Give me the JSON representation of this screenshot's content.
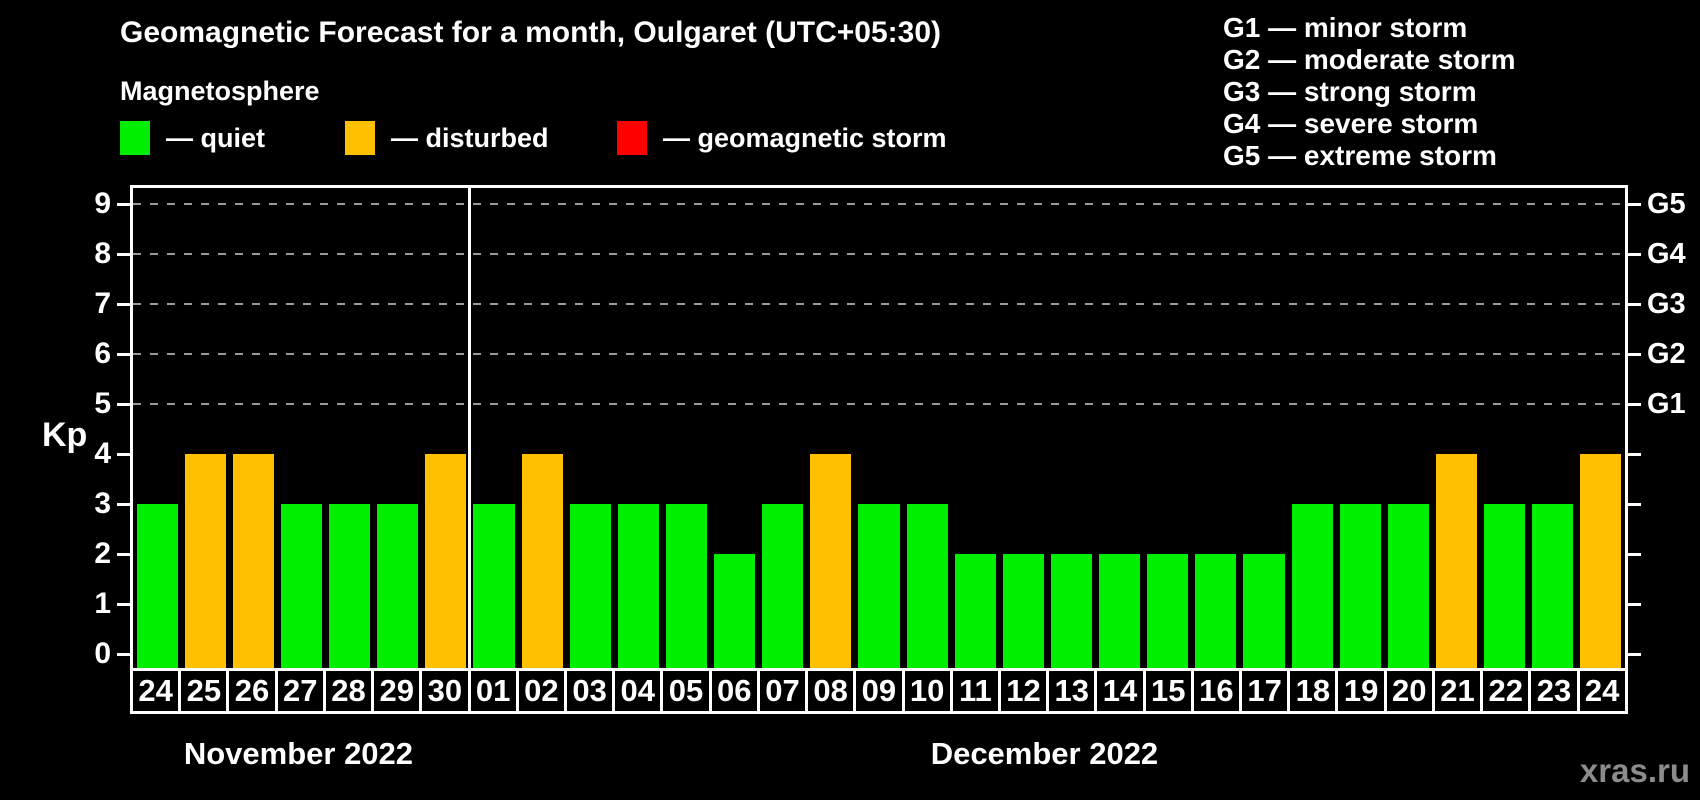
{
  "title": "Geomagnetic Forecast for a month, Oulgaret (UTC+05:30)",
  "subtitle": "Magnetosphere",
  "condition_legend": [
    {
      "key": "quiet",
      "label": "— quiet",
      "color": "#00ee00"
    },
    {
      "key": "disturbed",
      "label": "— disturbed",
      "color": "#ffc000"
    },
    {
      "key": "storm",
      "label": "— geomagnetic storm",
      "color": "#ff0000"
    }
  ],
  "g_legend": [
    "G1 — minor storm",
    "G2 — moderate storm",
    "G3 — strong storm",
    "G4 — severe storm",
    "G5 — extreme storm"
  ],
  "watermark": "xras.ru",
  "chart_data": {
    "type": "bar",
    "ylabel": "Kp",
    "ylim": [
      0,
      9.5
    ],
    "yticks": [
      0,
      1,
      2,
      3,
      4,
      5,
      6,
      7,
      8,
      9
    ],
    "gridlines": [
      5,
      6,
      7,
      8,
      9
    ],
    "grid_style": "dashed gray horizontal lines at storm levels",
    "right_axis_labels": [
      {
        "value": 5,
        "label": "G1"
      },
      {
        "value": 6,
        "label": "G2"
      },
      {
        "value": 7,
        "label": "G3"
      },
      {
        "value": 8,
        "label": "G4"
      },
      {
        "value": 9,
        "label": "G5"
      }
    ],
    "months": [
      {
        "label": "November 2022",
        "days": 7
      },
      {
        "label": "December 2022",
        "days": 24
      }
    ],
    "categories": [
      "24",
      "25",
      "26",
      "27",
      "28",
      "29",
      "30",
      "01",
      "02",
      "03",
      "04",
      "05",
      "06",
      "07",
      "08",
      "09",
      "10",
      "11",
      "12",
      "13",
      "14",
      "15",
      "16",
      "17",
      "18",
      "19",
      "20",
      "21",
      "22",
      "23",
      "24"
    ],
    "values": [
      3,
      4,
      4,
      3,
      3,
      3,
      4,
      3,
      4,
      3,
      3,
      3,
      2,
      3,
      4,
      3,
      3,
      2,
      2,
      2,
      2,
      2,
      2,
      2,
      3,
      3,
      3,
      4,
      3,
      3,
      4
    ],
    "conditions": [
      "quiet",
      "disturbed",
      "disturbed",
      "quiet",
      "quiet",
      "quiet",
      "disturbed",
      "quiet",
      "disturbed",
      "quiet",
      "quiet",
      "quiet",
      "quiet",
      "quiet",
      "disturbed",
      "quiet",
      "quiet",
      "quiet",
      "quiet",
      "quiet",
      "quiet",
      "quiet",
      "quiet",
      "quiet",
      "quiet",
      "quiet",
      "quiet",
      "disturbed",
      "quiet",
      "quiet",
      "disturbed"
    ],
    "colors": {
      "quiet": "#00ee00",
      "disturbed": "#ffc000",
      "storm": "#ff0000"
    }
  }
}
